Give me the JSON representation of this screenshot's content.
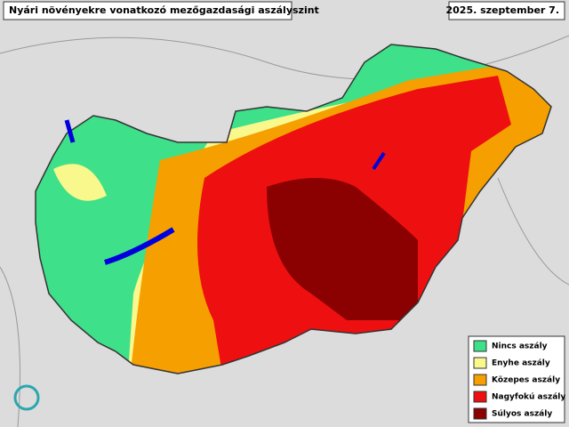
{
  "title": "Nyári növényekre vonatkozó mezőgazdasági aszályszint",
  "date": "2025. szeptember 7.",
  "legend": [
    {
      "label": "Nincs aszály",
      "color": "#3ee08a"
    },
    {
      "label": "Enyhe aszály",
      "color": "#f8f88c"
    },
    {
      "label": "Közepes aszály",
      "color": "#f5a000"
    },
    {
      "label": "Nagyfokú aszály",
      "color": "#ee1010"
    },
    {
      "label": "Súlyos aszály",
      "color": "#8b0000"
    }
  ]
}
